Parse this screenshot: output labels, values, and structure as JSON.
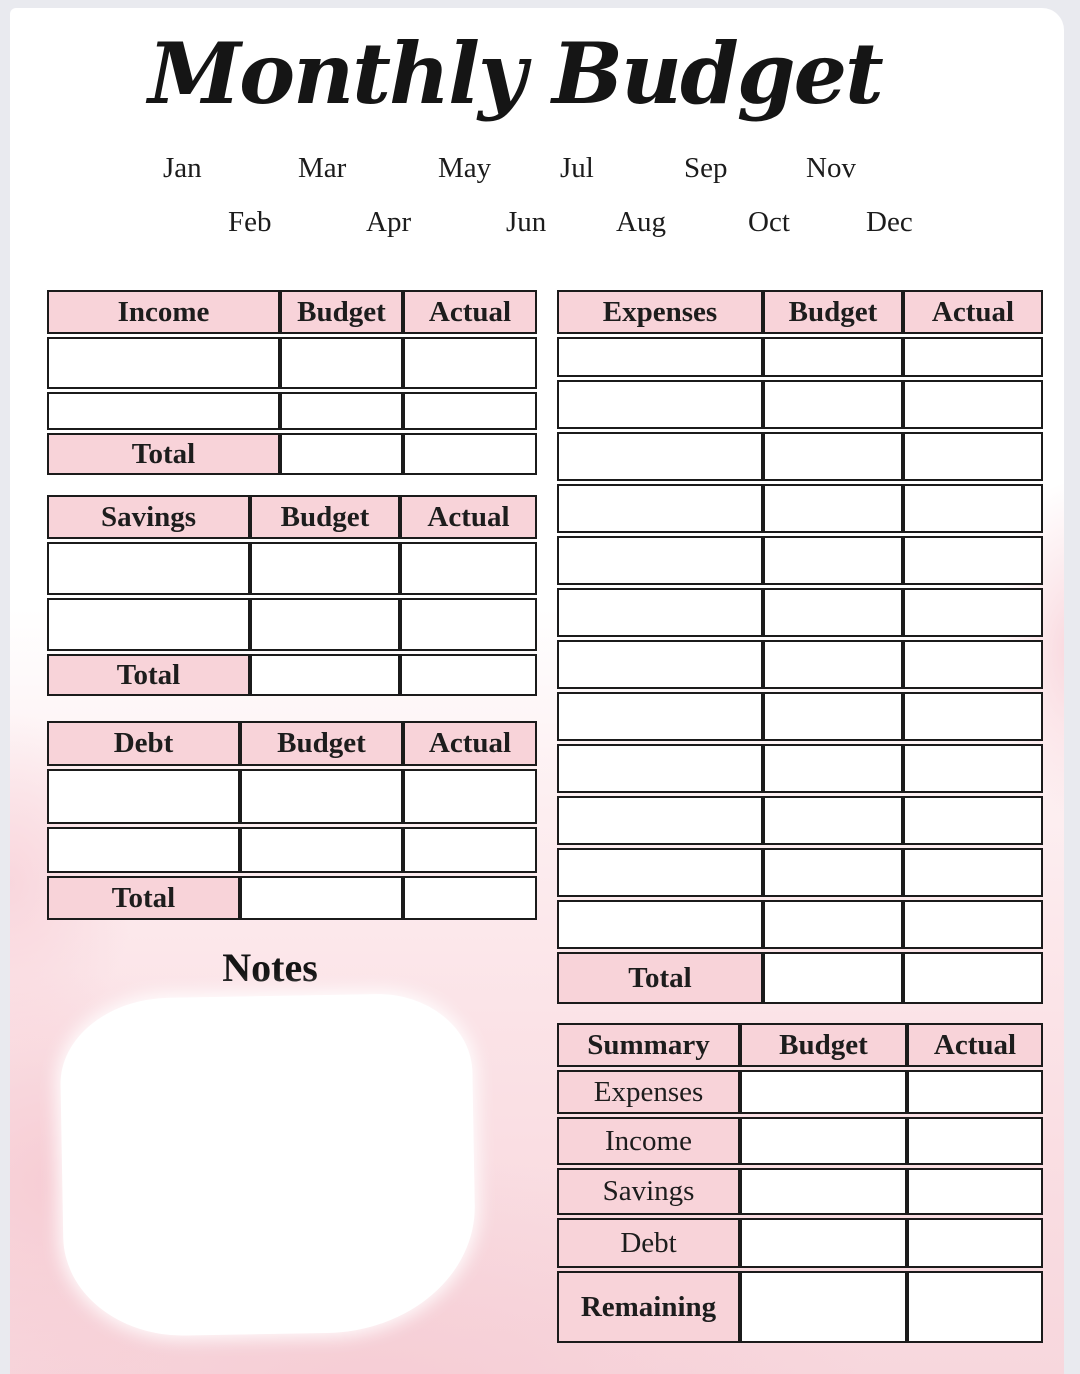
{
  "title": "Monthly Budget",
  "months": {
    "row1": [
      "Jan",
      "Mar",
      "May",
      "Jul",
      "Sep",
      "Nov"
    ],
    "row2": [
      "Feb",
      "Apr",
      "Jun",
      "Aug",
      "Oct",
      "Dec"
    ]
  },
  "income_table": {
    "name": "Income",
    "budget": "Budget",
    "actual": "Actual",
    "total": "Total",
    "empty_row_count": 2
  },
  "savings_table": {
    "name": "Savings",
    "budget": "Budget",
    "actual": "Actual",
    "total": "Total",
    "empty_row_count": 2
  },
  "debt_table": {
    "name": "Debt",
    "budget": "Budget",
    "actual": "Actual",
    "total": "Total",
    "empty_row_count": 2
  },
  "expenses_table": {
    "name": "Expenses",
    "budget": "Budget",
    "actual": "Actual",
    "total": "Total",
    "empty_row_count": 12
  },
  "summary_table": {
    "name": "Summary",
    "budget": "Budget",
    "actual": "Actual",
    "rows": [
      "Expenses",
      "Income",
      "Savings",
      "Debt"
    ],
    "remaining": "Remaining"
  },
  "notes": {
    "title": "Notes"
  },
  "colors": {
    "header_pink": "#f8d3d9",
    "table_border": "#1b1b1b",
    "watercolor_pink": "#f9dce1",
    "backdrop_gray": "#e9eaef"
  }
}
